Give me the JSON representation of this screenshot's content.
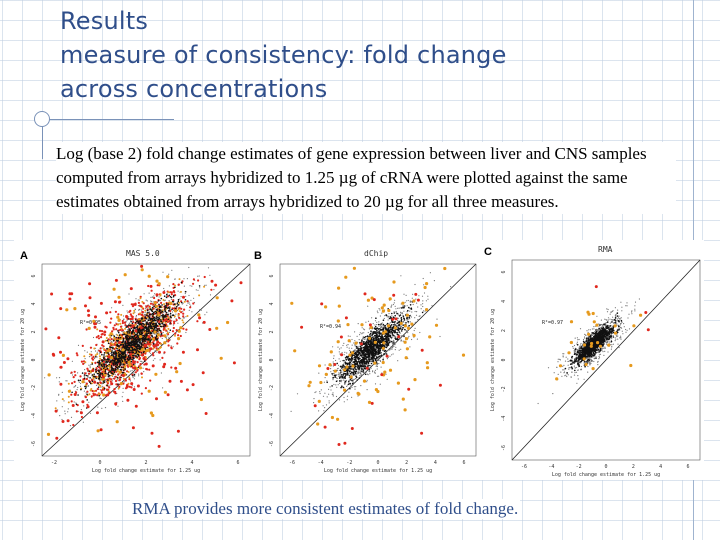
{
  "slide": {
    "title_lines": [
      "Results",
      "measure of consistency: fold change",
      "across concentrations"
    ],
    "body_text": "Log (base 2) fold change estimates of gene expression between liver and CNS samples computed from arrays hybridized to 1.25 µg of cRNA were plotted against the same estimates obtained from arrays hybridized to 20 µg for all three measures.",
    "caption": "RMA provides more consistent estimates of fold change."
  },
  "panels": [
    {
      "letter": "A",
      "title": "MAS 5.0",
      "r_label": "R²=0.95",
      "xlabel": "Log fold change estimate for 1.25 ug",
      "ylabel": "Log fold change estimate for 20 ug",
      "xticks": [
        "-2",
        "0",
        "2",
        "4",
        "6"
      ],
      "yticks": [
        "6",
        "4",
        "2",
        "0",
        "-2",
        "-4",
        "-6"
      ]
    },
    {
      "letter": "B",
      "title": "dChip",
      "r_label": "R²=0.94",
      "xlabel": "Log fold change estimate for 1.25 ug",
      "ylabel": "Log fold change estimate for 20 ug",
      "xticks": [
        "-6",
        "-4",
        "-2",
        "0",
        "2",
        "4",
        "6"
      ],
      "yticks": [
        "6",
        "4",
        "2",
        "0",
        "-2",
        "-4",
        "-6"
      ]
    },
    {
      "letter": "C",
      "title": "RMA",
      "r_label": "R²=0.97",
      "xlabel": "Log fold change estimate for 1.25 ug",
      "ylabel": "Log fold change estimate for 20 ug",
      "xticks": [
        "-6",
        "-4",
        "-2",
        "0",
        "2",
        "4",
        "6"
      ],
      "yticks": [
        "6",
        "4",
        "2",
        "0",
        "-2",
        "-4",
        "-6"
      ]
    }
  ],
  "colors": {
    "title": "#2f4e8a",
    "caption": "#2f4e8a",
    "red": "#e0281e",
    "orange": "#e69a1e",
    "black": "#111111"
  }
}
